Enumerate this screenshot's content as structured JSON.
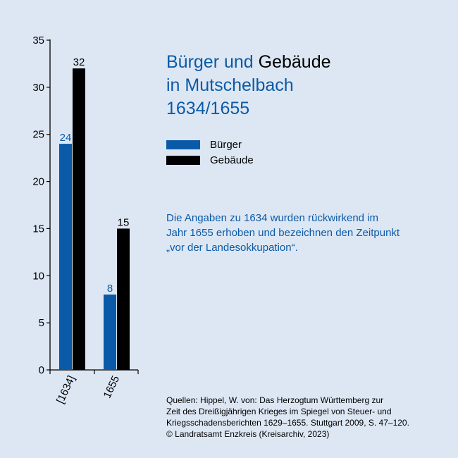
{
  "title": {
    "part1": "Bürger und ",
    "part2": "Gebäude",
    "line2": "in Mutschelbach",
    "line3": "1634/1655"
  },
  "legend": [
    {
      "label": "Bürger",
      "color": "#0a5aa8"
    },
    {
      "label": "Gebäude",
      "color": "#000000"
    }
  ],
  "note": [
    "Die Angaben zu 1634 wurden rückwirkend im",
    "Jahr 1655 erhoben und bezeichnen den Zeitpunkt",
    "„vor der Landesokkupation“."
  ],
  "sources": [
    "Quellen: Hippel, W. von: Das Herzogtum Württemberg zur",
    "Zeit des Dreißigjährigen Krieges im Spiegel von Steuer- und",
    "Kriegsschadensberichten 1629–1655. Stuttgart 2009, S. 47–120.",
    "© Landratsamt Enzkreis (Kreisarchiv, 2023)"
  ],
  "chart_data": {
    "type": "bar",
    "categories": [
      "[1634]",
      "1655"
    ],
    "series": [
      {
        "name": "Bürger",
        "values": [
          24,
          8
        ],
        "color": "#0a5aa8",
        "label_color": "#0a5aa8"
      },
      {
        "name": "Gebäude",
        "values": [
          32,
          15
        ],
        "color": "#000000",
        "label_color": "#000000"
      }
    ],
    "ylim": [
      0,
      35
    ],
    "yticks": [
      0,
      5,
      10,
      15,
      20,
      25,
      30,
      35
    ],
    "grid": false,
    "legend_position": "right"
  }
}
